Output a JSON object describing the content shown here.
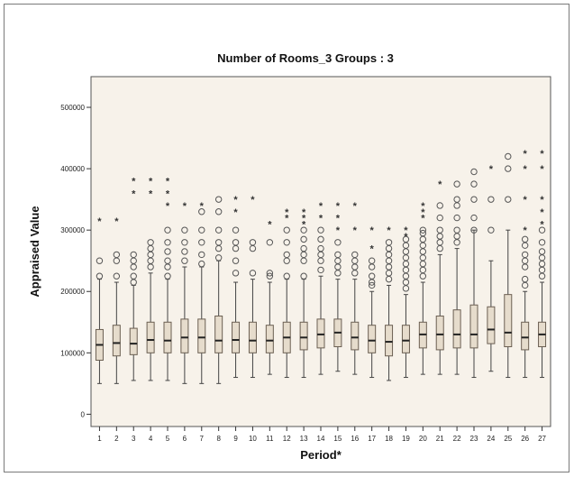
{
  "chart_data": {
    "type": "box",
    "title": "Number of Rooms_3 Groups : 3",
    "xlabel": "Period*",
    "ylabel": "Appraised Value",
    "ylim": [
      -20000,
      550000
    ],
    "yticks": [
      0,
      100000,
      200000,
      300000,
      400000,
      500000
    ],
    "ytick_labels": [
      "0",
      "100000",
      "200000",
      "300000",
      "400000",
      "500000"
    ],
    "categories": [
      "1",
      "2",
      "3",
      "4",
      "5",
      "6",
      "7",
      "8",
      "9",
      "10",
      "11",
      "12",
      "13",
      "14",
      "15",
      "16",
      "17",
      "18",
      "19",
      "20",
      "21",
      "22",
      "23",
      "24",
      "25",
      "26",
      "27"
    ],
    "grid": false,
    "background_color": "#f7f2ea",
    "box_fill": "#e6dccc",
    "box_stroke": "#6b5f52",
    "series": [
      {
        "category": "1",
        "min": 50000,
        "q1": 88000,
        "median": 113000,
        "q3": 138000,
        "max": 220000,
        "outliers": [
          225000,
          250000
        ],
        "extremes": [
          315000
        ]
      },
      {
        "category": "2",
        "min": 50000,
        "q1": 95000,
        "median": 116000,
        "q3": 145000,
        "max": 215000,
        "outliers": [
          225000,
          250000,
          260000
        ],
        "extremes": [
          315000
        ]
      },
      {
        "category": "3",
        "min": 55000,
        "q1": 97000,
        "median": 115000,
        "q3": 140000,
        "max": 210000,
        "outliers": [
          215000,
          225000,
          240000,
          250000,
          260000
        ],
        "extremes": [
          360000,
          380000
        ]
      },
      {
        "category": "4",
        "min": 55000,
        "q1": 100000,
        "median": 121000,
        "q3": 150000,
        "max": 230000,
        "outliers": [
          240000,
          250000,
          260000,
          270000,
          280000
        ],
        "extremes": [
          360000,
          380000
        ]
      },
      {
        "category": "5",
        "min": 55000,
        "q1": 100000,
        "median": 120000,
        "q3": 150000,
        "max": 220000,
        "outliers": [
          225000,
          240000,
          250000,
          265000,
          280000,
          300000
        ],
        "extremes": [
          340000,
          360000,
          380000
        ]
      },
      {
        "category": "6",
        "min": 50000,
        "q1": 100000,
        "median": 125000,
        "q3": 155000,
        "max": 240000,
        "outliers": [
          250000,
          265000,
          280000,
          300000
        ],
        "extremes": [
          340000
        ]
      },
      {
        "category": "7",
        "min": 50000,
        "q1": 100000,
        "median": 125000,
        "q3": 155000,
        "max": 240000,
        "outliers": [
          245000,
          260000,
          280000,
          300000,
          330000
        ],
        "extremes": [
          340000
        ]
      },
      {
        "category": "8",
        "min": 50000,
        "q1": 100000,
        "median": 120000,
        "q3": 160000,
        "max": 250000,
        "outliers": [
          255000,
          270000,
          280000,
          300000,
          330000,
          350000
        ],
        "extremes": []
      },
      {
        "category": "9",
        "min": 60000,
        "q1": 100000,
        "median": 121000,
        "q3": 150000,
        "max": 215000,
        "outliers": [
          230000,
          250000,
          270000,
          280000,
          300000
        ],
        "extremes": [
          330000,
          350000
        ]
      },
      {
        "category": "10",
        "min": 60000,
        "q1": 100000,
        "median": 120000,
        "q3": 150000,
        "max": 220000,
        "outliers": [
          230000,
          270000,
          280000
        ],
        "extremes": [
          350000
        ]
      },
      {
        "category": "11",
        "min": 65000,
        "q1": 100000,
        "median": 120000,
        "q3": 145000,
        "max": 215000,
        "outliers": [
          225000,
          230000,
          280000
        ],
        "extremes": [
          310000
        ]
      },
      {
        "category": "12",
        "min": 60000,
        "q1": 100000,
        "median": 125000,
        "q3": 150000,
        "max": 220000,
        "outliers": [
          225000,
          250000,
          260000,
          280000,
          300000
        ],
        "extremes": [
          320000,
          330000
        ]
      },
      {
        "category": "13",
        "min": 60000,
        "q1": 105000,
        "median": 125000,
        "q3": 150000,
        "max": 220000,
        "outliers": [
          225000,
          250000,
          260000,
          270000,
          285000,
          300000
        ],
        "extremes": [
          310000,
          320000,
          330000
        ]
      },
      {
        "category": "14",
        "min": 65000,
        "q1": 108000,
        "median": 130000,
        "q3": 155000,
        "max": 225000,
        "outliers": [
          235000,
          250000,
          260000,
          270000,
          285000,
          300000
        ],
        "extremes": [
          320000,
          340000
        ]
      },
      {
        "category": "15",
        "min": 70000,
        "q1": 110000,
        "median": 133000,
        "q3": 155000,
        "max": 220000,
        "outliers": [
          230000,
          240000,
          250000,
          260000,
          280000
        ],
        "extremes": [
          300000,
          320000,
          340000
        ]
      },
      {
        "category": "16",
        "min": 65000,
        "q1": 105000,
        "median": 125000,
        "q3": 150000,
        "max": 220000,
        "outliers": [
          230000,
          240000,
          250000,
          260000
        ],
        "extremes": [
          300000,
          340000
        ]
      },
      {
        "category": "17",
        "min": 60000,
        "q1": 100000,
        "median": 120000,
        "q3": 145000,
        "max": 200000,
        "outliers": [
          210000,
          215000,
          225000,
          240000,
          250000
        ],
        "extremes": [
          270000,
          300000
        ]
      },
      {
        "category": "18",
        "min": 55000,
        "q1": 95000,
        "median": 118000,
        "q3": 145000,
        "max": 210000,
        "outliers": [
          220000,
          230000,
          240000,
          250000,
          260000,
          270000,
          280000
        ],
        "extremes": [
          300000
        ]
      },
      {
        "category": "19",
        "min": 60000,
        "q1": 100000,
        "median": 120000,
        "q3": 145000,
        "max": 195000,
        "outliers": [
          205000,
          215000,
          225000,
          235000,
          245000,
          255000,
          265000,
          275000,
          285000
        ],
        "extremes": [
          290000,
          300000
        ]
      },
      {
        "category": "20",
        "min": 65000,
        "q1": 108000,
        "median": 130000,
        "q3": 150000,
        "max": 215000,
        "outliers": [
          225000,
          235000,
          245000,
          255000,
          265000,
          275000,
          285000,
          295000,
          300000
        ],
        "extremes": [
          320000,
          330000,
          340000
        ]
      },
      {
        "category": "21",
        "min": 65000,
        "q1": 105000,
        "median": 130000,
        "q3": 160000,
        "max": 260000,
        "outliers": [
          270000,
          280000,
          290000,
          300000,
          320000,
          340000
        ],
        "extremes": [
          375000
        ]
      },
      {
        "category": "22",
        "min": 65000,
        "q1": 108000,
        "median": 130000,
        "q3": 170000,
        "max": 270000,
        "outliers": [
          280000,
          290000,
          300000,
          320000,
          340000,
          350000,
          375000
        ],
        "extremes": []
      },
      {
        "category": "23",
        "min": 60000,
        "q1": 108000,
        "median": 130000,
        "q3": 178000,
        "max": 300000,
        "outliers": [
          300000,
          320000,
          350000,
          375000,
          395000
        ],
        "extremes": []
      },
      {
        "category": "24",
        "min": 70000,
        "q1": 115000,
        "median": 138000,
        "q3": 175000,
        "max": 250000,
        "outliers": [
          300000,
          350000
        ],
        "extremes": [
          400000
        ]
      },
      {
        "category": "25",
        "min": 60000,
        "q1": 110000,
        "median": 133000,
        "q3": 195000,
        "max": 300000,
        "outliers": [
          350000,
          400000,
          420000
        ],
        "extremes": []
      },
      {
        "category": "26",
        "min": 60000,
        "q1": 105000,
        "median": 125000,
        "q3": 150000,
        "max": 200000,
        "outliers": [
          210000,
          220000,
          240000,
          250000,
          260000,
          275000,
          285000
        ],
        "extremes": [
          300000,
          350000,
          400000,
          425000
        ]
      },
      {
        "category": "27",
        "min": 60000,
        "q1": 110000,
        "median": 130000,
        "q3": 150000,
        "max": 215000,
        "outliers": [
          225000,
          235000,
          245000,
          255000,
          265000,
          280000,
          300000
        ],
        "extremes": [
          310000,
          330000,
          350000,
          400000,
          425000
        ]
      }
    ]
  }
}
